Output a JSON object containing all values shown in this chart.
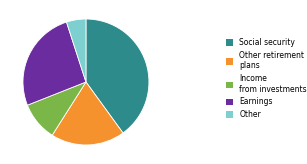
{
  "legend_labels": [
    "Social security",
    "Other retirement\nplans",
    "Income\nfrom investments",
    "Earnings",
    "Other"
  ],
  "values": [
    40,
    19,
    10,
    26,
    5
  ],
  "colors": [
    "#2e8b8b",
    "#f5922e",
    "#7ab648",
    "#6a2c9e",
    "#7ecfcf"
  ],
  "startangle": 90,
  "figsize": [
    3.07,
    1.64
  ],
  "dpi": 100,
  "bg_color": "#ffffff"
}
